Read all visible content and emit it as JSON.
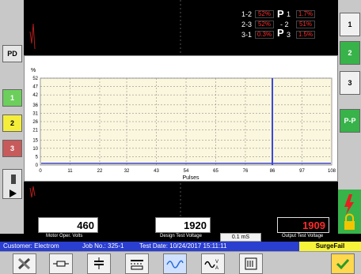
{
  "left_buttons": [
    {
      "label": "PD"
    },
    {
      "label": "1"
    },
    {
      "label": "2"
    },
    {
      "label": "3"
    }
  ],
  "right_buttons": [
    {
      "label": "1"
    },
    {
      "label": "2"
    },
    {
      "label": "3"
    },
    {
      "label": "P-P"
    }
  ],
  "readout": {
    "rows": [
      {
        "label": "1-2",
        "value": "52%"
      },
      {
        "label": "2-3",
        "value": "52%"
      },
      {
        "label": "3-1",
        "value": "0.3%"
      }
    ],
    "p_rows": [
      {
        "label": "1",
        "value": "1.7%"
      },
      {
        "label": "2",
        "value": "51%"
      },
      {
        "label": "3",
        "value": "1.5%"
      }
    ]
  },
  "chart_data": {
    "type": "bar",
    "ylabel": "%",
    "xlabel": "Pulses",
    "xlim": [
      0,
      108
    ],
    "ylim": [
      0,
      52
    ],
    "yticks": [
      0,
      5,
      10,
      15,
      21,
      26,
      31,
      36,
      42,
      47,
      52
    ],
    "xticks": [
      0,
      11,
      22,
      32,
      43,
      54,
      65,
      76,
      86,
      97,
      108
    ],
    "spike": {
      "x": 86,
      "value": 52
    },
    "baseline_value": 1,
    "grid": true
  },
  "values": {
    "motor_volts": "460",
    "motor_volts_label": "Motor Oper. Volts",
    "design_voltage": "1920",
    "design_voltage_label": "Design Test Voltage",
    "output_voltage": "1909",
    "output_voltage_label": "Output Test Voltage",
    "time_scale": "0.1 mS"
  },
  "info_bar": {
    "customer": "Customer: Electrom",
    "job": "Job No.: 325-1",
    "date": "Test Date: 10/24/2017 15:11:11",
    "status": "SurgeFail"
  },
  "toolbar": {
    "buttons": [
      {
        "name": "tools-icon"
      },
      {
        "name": "resistor-icon"
      },
      {
        "name": "capacitor-icon"
      },
      {
        "name": "dc-meter-icon"
      },
      {
        "name": "waveform-icon"
      },
      {
        "name": "ac-volt-amp-icon"
      },
      {
        "name": "report-icon"
      },
      {
        "name": "confirm-icon"
      }
    ]
  },
  "colors": {
    "accent_blue": "#2a3ecf",
    "status_yellow": "#f7f33a",
    "alarm_red": "#ff2a2a",
    "spike_blue": "#3b45d6",
    "plot_bg": "#fbf7de"
  }
}
